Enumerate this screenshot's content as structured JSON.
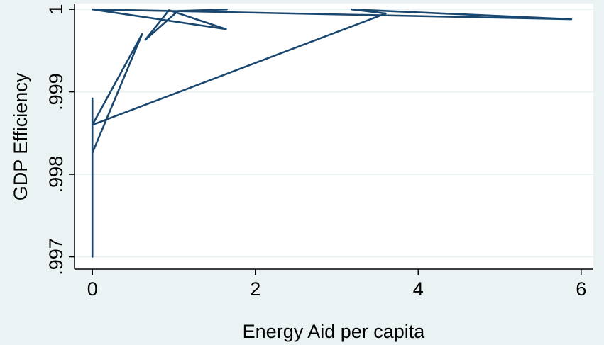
{
  "chart_data": {
    "type": "line",
    "title": "",
    "xlabel": "Energy Aid per capita",
    "ylabel": "GDP Efficiency",
    "xlim": [
      -0.22,
      6.15
    ],
    "ylim": [
      0.99685,
      1.00007
    ],
    "x_ticks": [
      0,
      2,
      4,
      6
    ],
    "x_tick_labels": [
      "0",
      "2",
      "4",
      "6"
    ],
    "y_ticks": [
      0.997,
      0.998,
      0.999,
      1
    ],
    "y_tick_labels": [
      ".997",
      ".998",
      ".999",
      "1"
    ],
    "grid": true,
    "legend": "none",
    "series": [
      {
        "color": "#1a476f",
        "points": [
          [
            0,
            0.997
          ],
          [
            0,
            0.99892
          ],
          [
            0,
            0.99826
          ],
          [
            0.61,
            0.9997
          ],
          [
            0,
            0.9986
          ],
          [
            3.6,
            0.99995
          ],
          [
            3.18,
            1.0
          ],
          [
            5.88,
            0.99988
          ],
          [
            0,
            1.0
          ],
          [
            1.64,
            0.99976
          ],
          [
            0.94,
            0.99999
          ],
          [
            0.65,
            0.99963
          ],
          [
            1.05,
            0.99998
          ],
          [
            1.65,
            1.0
          ]
        ]
      }
    ]
  }
}
